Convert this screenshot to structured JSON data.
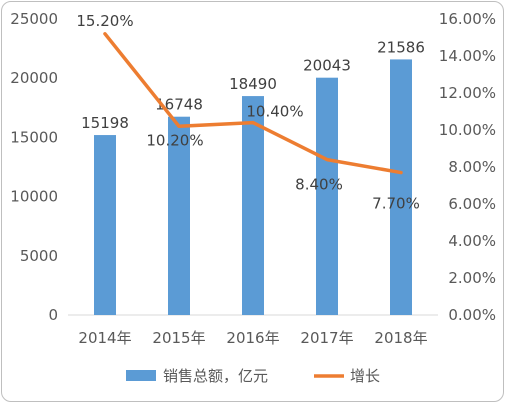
{
  "chart_data": {
    "type": "bar",
    "categories": [
      "2014年",
      "2015年",
      "2016年",
      "2017年",
      "2018年"
    ],
    "series": [
      {
        "name": "销售总额，亿元",
        "type": "bar",
        "axis": "left",
        "values": [
          15198,
          16748,
          18490,
          20043,
          21586
        ],
        "labels": [
          "15198",
          "16748",
          "18490",
          "20043",
          "21586"
        ]
      },
      {
        "name": "增长",
        "type": "line",
        "axis": "right",
        "values": [
          15.2,
          10.2,
          10.4,
          8.4,
          7.7
        ],
        "labels": [
          "15.20%",
          "10.20%",
          "10.40%",
          "8.40%",
          "7.70%"
        ]
      }
    ],
    "y_left": {
      "ylim": [
        0,
        25000
      ],
      "ticks": [
        "0",
        "5000",
        "10000",
        "15000",
        "20000",
        "25000"
      ]
    },
    "y_right": {
      "ylim": [
        0,
        16
      ],
      "ticks": [
        "0.00%",
        "2.00%",
        "4.00%",
        "6.00%",
        "8.00%",
        "10.00%",
        "12.00%",
        "14.00%",
        "16.00%"
      ]
    },
    "grid": false,
    "legend_position": "bottom",
    "colors": {
      "bar": "#5b9bd5",
      "line": "#ed7d31"
    }
  }
}
